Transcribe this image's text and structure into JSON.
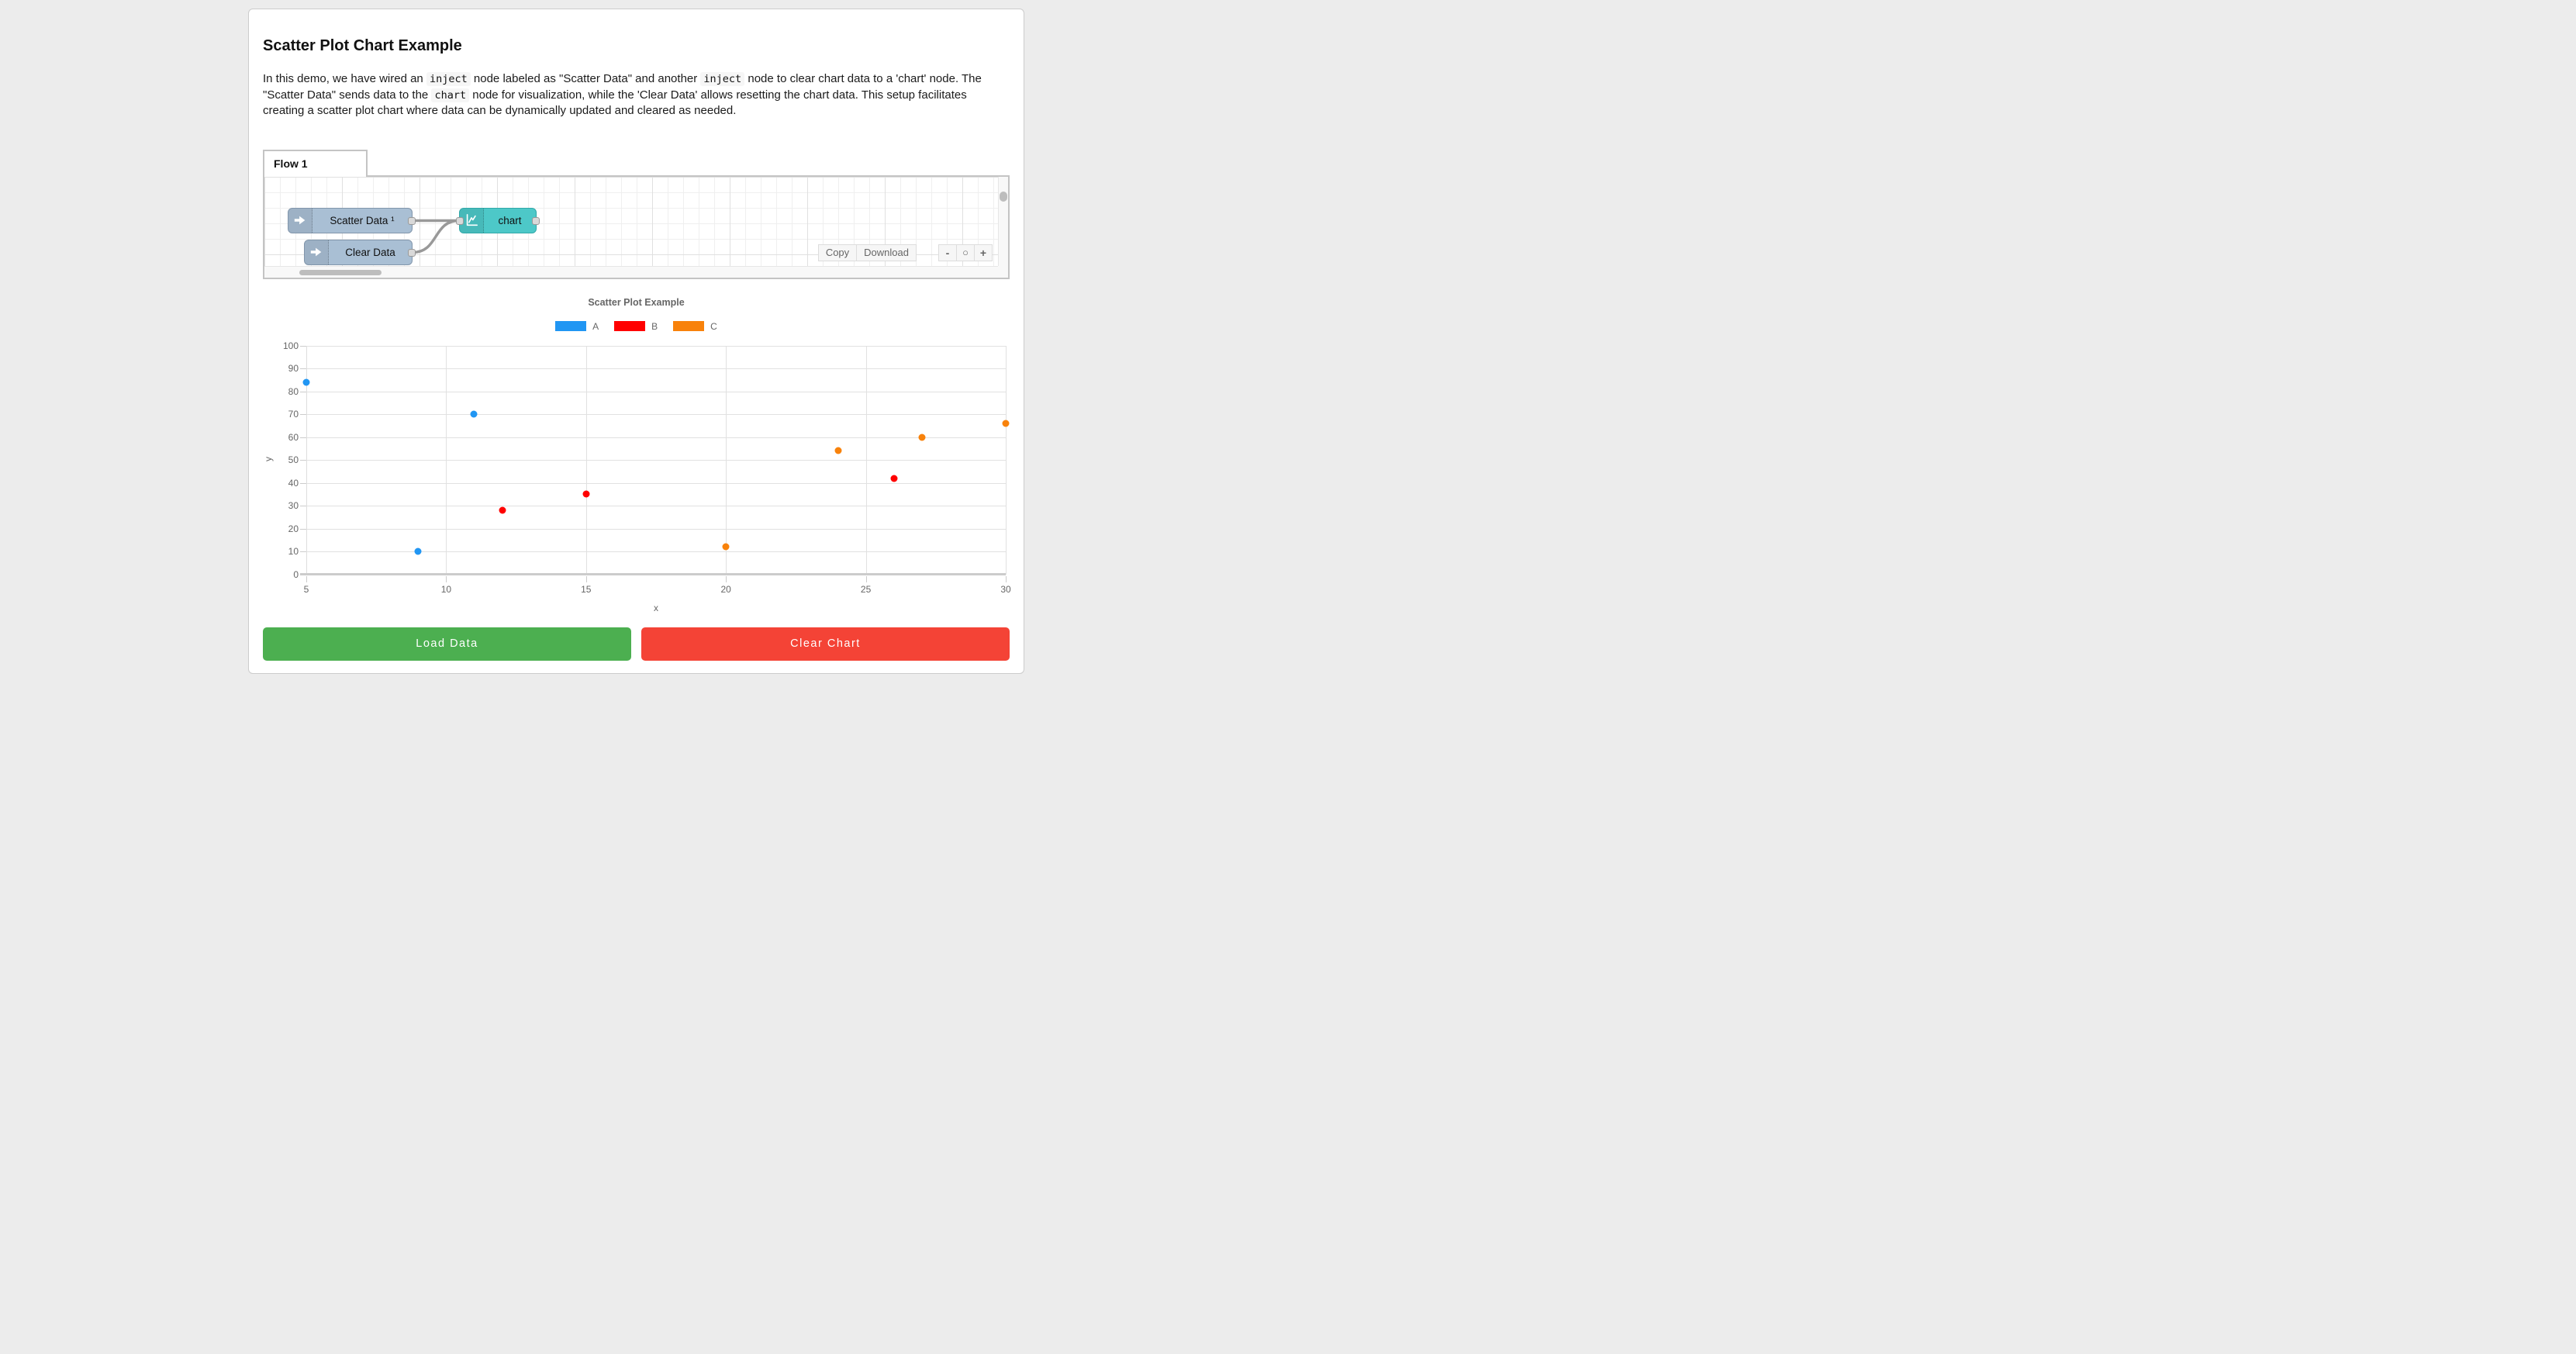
{
  "page": {
    "title": "Scatter Plot Chart Example",
    "intro_segments": [
      {
        "text": "In this demo, we have wired an ",
        "code": false
      },
      {
        "text": "inject",
        "code": true
      },
      {
        "text": " node labeled as \"Scatter Data\" and another ",
        "code": false
      },
      {
        "text": "inject",
        "code": true
      },
      {
        "text": " node to clear chart data to a 'chart' node. The \"Scatter Data\" sends data to the ",
        "code": false
      },
      {
        "text": "chart",
        "code": true
      },
      {
        "text": " node for visualization, while the 'Clear Data' allows resetting the chart data. This setup facilitates creating a scatter plot chart where data can be dynamically updated and cleared as needed.",
        "code": false
      }
    ]
  },
  "flow": {
    "tab_label": "Flow 1",
    "nodes": [
      {
        "label": "Scatter Data ¹",
        "type": "inject",
        "color": "#a9bfd4"
      },
      {
        "label": "Clear Data",
        "type": "inject",
        "color": "#a9bfd4"
      },
      {
        "label": "chart",
        "type": "chart",
        "color": "#4dc8c8"
      }
    ],
    "toolbar": {
      "copy": "Copy",
      "download": "Download",
      "zoom_out": "-",
      "zoom_reset": "○",
      "zoom_in": "+"
    }
  },
  "chart_data": {
    "type": "scatter",
    "title": "Scatter Plot Example",
    "xlabel": "x",
    "ylabel": "y",
    "xlim": [
      5,
      30
    ],
    "ylim": [
      0,
      100
    ],
    "xticks": [
      5,
      10,
      15,
      20,
      25,
      30
    ],
    "yticks": [
      0,
      10,
      20,
      30,
      40,
      50,
      60,
      70,
      80,
      90,
      100
    ],
    "grid": true,
    "legend_position": "top",
    "series": [
      {
        "name": "A",
        "color": "#2196F3",
        "points": [
          [
            5,
            84
          ],
          [
            9,
            10
          ],
          [
            11,
            70
          ]
        ]
      },
      {
        "name": "B",
        "color": "#FF0000",
        "points": [
          [
            12,
            28
          ],
          [
            15,
            35
          ],
          [
            26,
            42
          ]
        ]
      },
      {
        "name": "C",
        "color": "#F8820B",
        "points": [
          [
            20,
            12
          ],
          [
            24,
            54
          ],
          [
            27,
            60
          ],
          [
            30,
            66
          ]
        ]
      }
    ]
  },
  "actions": {
    "load_label": "Load Data",
    "load_color": "#4CAF50",
    "clear_label": "Clear Chart",
    "clear_color": "#F44336"
  }
}
